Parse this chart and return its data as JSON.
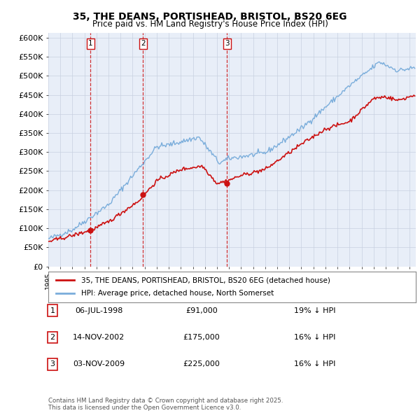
{
  "title": "35, THE DEANS, PORTISHEAD, BRISTOL, BS20 6EG",
  "subtitle": "Price paid vs. HM Land Registry's House Price Index (HPI)",
  "ylim": [
    0,
    612500
  ],
  "yticks": [
    0,
    50000,
    100000,
    150000,
    200000,
    250000,
    300000,
    350000,
    400000,
    450000,
    500000,
    550000,
    600000
  ],
  "ytick_labels": [
    "£0",
    "£50K",
    "£100K",
    "£150K",
    "£200K",
    "£250K",
    "£300K",
    "£350K",
    "£400K",
    "£450K",
    "£500K",
    "£550K",
    "£600K"
  ],
  "hpi_color": "#7aaddb",
  "price_color": "#cc1111",
  "vline_color": "#cc1111",
  "background_color": "#e8eef8",
  "grid_color": "#c8d0e0",
  "purchases": [
    {
      "label": "1",
      "date_num": 1998.51,
      "price": 91000,
      "date_str": "06-JUL-1998",
      "pct": "19%",
      "direction": "↓"
    },
    {
      "label": "2",
      "date_num": 2002.87,
      "price": 175000,
      "date_str": "14-NOV-2002",
      "pct": "16%",
      "direction": "↓"
    },
    {
      "label": "3",
      "date_num": 2009.84,
      "price": 225000,
      "date_str": "03-NOV-2009",
      "pct": "16%",
      "direction": "↓"
    }
  ],
  "legend_price_label": "35, THE DEANS, PORTISHEAD, BRISTOL, BS20 6EG (detached house)",
  "legend_hpi_label": "HPI: Average price, detached house, North Somerset",
  "footer": "Contains HM Land Registry data © Crown copyright and database right 2025.\nThis data is licensed under the Open Government Licence v3.0.",
  "xlim_start": 1995.0,
  "xlim_end": 2025.5
}
